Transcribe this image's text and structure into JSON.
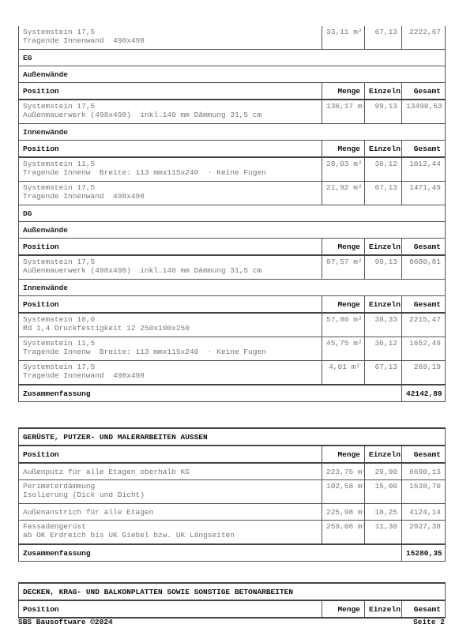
{
  "block1": {
    "top_item": {
      "line1": "Systemstein 17,5",
      "line2": "Tragende Innenwand  498x498",
      "menge": "33,11 m²",
      "einzeln": "67,13",
      "gesamt": "2222,67"
    },
    "eg": "EG",
    "eg_aussen": {
      "label": "Außenwände",
      "items": [
        {
          "line1": "Systemstein 17,5",
          "line2": "Außenmauerwerk (498x498)  inkl.140 mm Dämmung 31,5 cm",
          "menge": "136,17 m²",
          "einzeln": "99,13",
          "gesamt": "13498,53"
        }
      ]
    },
    "eg_innen": {
      "label": "Innenwände",
      "items": [
        {
          "line1": "Systemstein 11,5",
          "line2": "Tragende Innenw  Breite: 113 mmx115x240  · Keine Fugen",
          "menge": "28,03 m²",
          "einzeln": "36,12",
          "gesamt": "1012,44"
        },
        {
          "line1": "Systemstein 17,5",
          "line2": "Tragende Innenwand  498x498",
          "menge": "21,92 m²",
          "einzeln": "67,13",
          "gesamt": "1471,49"
        }
      ]
    },
    "dg": "DG",
    "dg_aussen": {
      "label": "Außenwände",
      "items": [
        {
          "line1": "Systemstein 17,5",
          "line2": "Außenmauerwerk (498x498)  inkl.140 mm Dämmung 31,5 cm",
          "menge": "87,57 m²",
          "einzeln": "99,13",
          "gesamt": "8680,81"
        }
      ]
    },
    "dg_innen": {
      "label": "Innenwände",
      "items": [
        {
          "line1": "Systemstein 10,0",
          "line2": "Rd 1,4 Druckfestigkeit 12 250x100x250",
          "menge": "57,80 m²",
          "einzeln": "38,33",
          "gesamt": "2215,47"
        },
        {
          "line1": "Systemstein 11,5",
          "line2": "Tragende Innenw  Breite: 113 mmx115x240  · Keine Fugen",
          "menge": "45,75 m²",
          "einzeln": "36,12",
          "gesamt": "1652,49"
        },
        {
          "line1": "Systemstein 17,5",
          "line2": "Tragende Innenwand  498x498",
          "menge": "4,01 m²",
          "einzeln": "67,13",
          "gesamt": "269,19"
        }
      ]
    },
    "summary_label": "Zusammenfassung",
    "summary_value": "42142,89"
  },
  "headers": {
    "position": "Position",
    "menge": "Menge",
    "einzeln": "Einzeln",
    "gesamt": "Gesamt"
  },
  "block2": {
    "title": "GERÜSTE, PUTZER- UND MALERARBEITEN AUSSEN",
    "items": [
      {
        "line1": "Außenputz für alle Etagen oberhalb KG",
        "line2": "",
        "menge": "223,75 m²",
        "einzeln": "29,90",
        "gesamt": "6690,13"
      },
      {
        "line1": "Perimeterdämmung",
        "line2": "Isolierung (Dick und Dicht)",
        "menge": "102,58 m²",
        "einzeln": "15,00",
        "gesamt": "1538,70"
      },
      {
        "line1": "Außenanstrich für alle Etagen",
        "line2": "",
        "menge": "225,98 m²",
        "einzeln": "18,25",
        "gesamt": "4124,14"
      },
      {
        "line1": "Fassadengerüst",
        "line2": "ab OK Erdreich bis UK Giebel bzw. UK Längseiten",
        "menge": "259,06 m²",
        "einzeln": "11,30",
        "gesamt": "2927,38"
      }
    ],
    "summary_label": "Zusammenfassung",
    "summary_value": "15280,35"
  },
  "block3": {
    "title": "DECKEN, KRAG- UND BALKONPLATTEN SOWIE SONSTIGE BETONARBEITEN"
  },
  "footer": {
    "left": "SBS Bausoftware ©2024",
    "right": "Seite 2"
  }
}
